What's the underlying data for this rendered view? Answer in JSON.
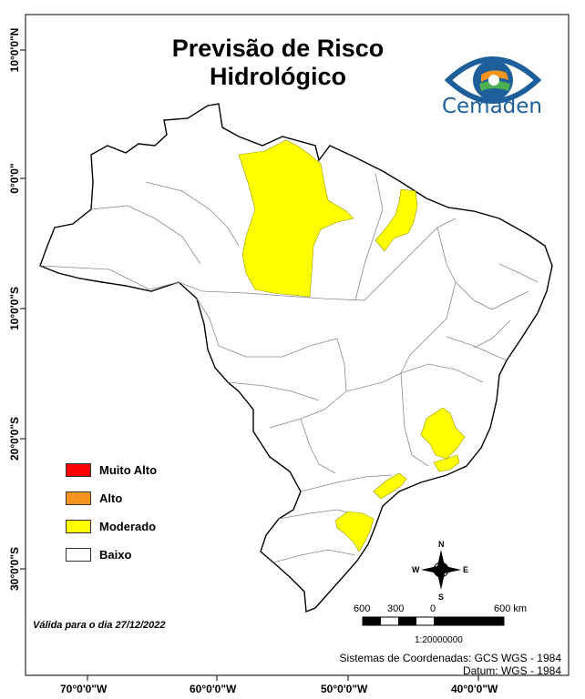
{
  "map": {
    "title_line1": "Previsão de Risco",
    "title_line2": "Hidrológico",
    "logo_text": "Cemaden",
    "legend": [
      {
        "label": "Muito Alto",
        "color": "#ff0000"
      },
      {
        "label": "Alto",
        "color": "#f7941d"
      },
      {
        "label": "Moderado",
        "color": "#ffff00"
      },
      {
        "label": "Baixo",
        "color": "#ffffff"
      }
    ],
    "valid_text": "Válida para o dia 27/12/2022",
    "scale": {
      "labels": [
        "600",
        "300",
        "0",
        "600 km"
      ],
      "ratio": "1:20000000"
    },
    "crs_line1": "Sistemas de Coordenadas: GCS WGS - 1984",
    "crs_line2": "Datum: WGS - 1984",
    "longitude_ticks": [
      "70°0'0\"W",
      "60°0'0\"W",
      "50°0'0\"W",
      "40°0'0\"W"
    ],
    "latitude_ticks": [
      "10°0'0\"N",
      "0°0'0\"",
      "10°0'0\"S",
      "20°0'0\"S",
      "30°0'0\"S"
    ],
    "compass": {
      "n": "N",
      "s": "S",
      "e": "E",
      "w": "W"
    },
    "colors": {
      "moderate": "#ffff00",
      "low": "#ffffff",
      "border": "#000000",
      "inner_border": "#8a8a8a"
    }
  }
}
